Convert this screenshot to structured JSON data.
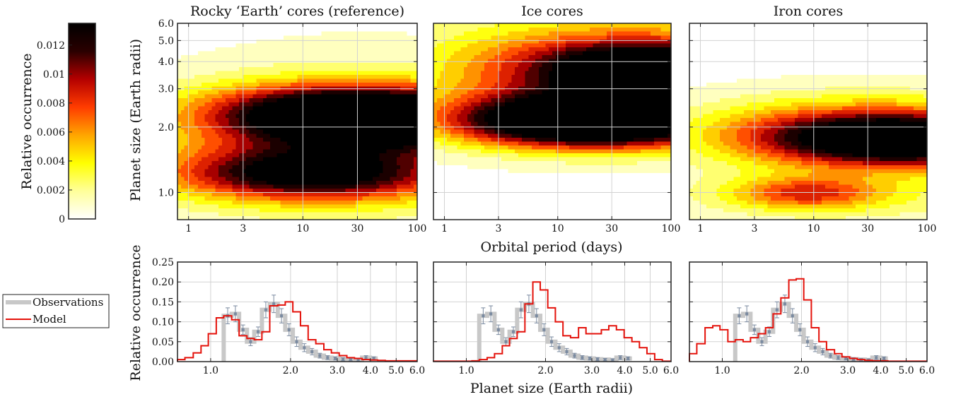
{
  "labels": {
    "xlabel_top": "Orbital period (days)",
    "ylabel_top": "Planet size (Earth radii)",
    "xlabel_bottom": "Planet size (Earth radii)",
    "ylabel_bottom": "Relative occurrence",
    "colorbar_label": "Relative occurrence"
  },
  "colorbar": {
    "ticks": [
      0,
      0.002,
      0.004,
      0.006,
      0.008,
      0.01,
      0.012
    ],
    "tick_labels": [
      "0",
      "0.002",
      "0.004",
      "0.006",
      "0.008",
      "0.01",
      "0.012"
    ],
    "range": [
      0,
      0.0135
    ],
    "colors": [
      "#ffffff",
      "#ffff9a",
      "#ffff00",
      "#ffa500",
      "#ff3c00",
      "#b40000",
      "#2a0000",
      "#000000"
    ]
  },
  "legend": {
    "entries": [
      {
        "label": "Observations",
        "color": "#c8c8c8"
      },
      {
        "label": "Model",
        "color": "#e4120b"
      }
    ]
  },
  "chart_data": [
    {
      "type": "heatmap",
      "title": "Rocky ‘Earth’ cores (reference)",
      "x_scale": "log",
      "y_scale": "log",
      "xlim": [
        0.8,
        100
      ],
      "ylim": [
        0.75,
        6.0
      ],
      "xticks": [
        1,
        3,
        10,
        30,
        100
      ],
      "xtick_labels": [
        "1",
        "3",
        "10",
        "30",
        "100"
      ],
      "yticks": [
        1.0,
        2.0,
        3.0,
        4.0,
        5.0,
        6.0
      ],
      "ytick_labels": [
        "1.0",
        "2.0",
        "3.0",
        "4.0",
        "5.0",
        "6.0"
      ],
      "grid": true,
      "blobs": [
        {
          "x": 10,
          "y": 1.25,
          "amplitude": 0.008,
          "sx": 0.75,
          "sy": 0.08
        },
        {
          "x": 20,
          "y": 1.15,
          "amplitude": 0.0035,
          "sx": 0.9,
          "sy": 0.08
        },
        {
          "x": 8,
          "y": 1.3,
          "amplitude": 0.003,
          "sx": 1.1,
          "sy": 0.13
        },
        {
          "x": 70,
          "y": 2.15,
          "amplitude": 0.013,
          "sx": 0.9,
          "sy": 0.09
        },
        {
          "x": 25,
          "y": 2.3,
          "amplitude": 0.006,
          "sx": 1.0,
          "sy": 0.11
        },
        {
          "x": 12,
          "y": 2.45,
          "amplitude": 0.004,
          "sx": 0.7,
          "sy": 0.08
        },
        {
          "x": 35,
          "y": 1.8,
          "amplitude": 0.0022,
          "sx": 1.3,
          "sy": 0.3
        }
      ]
    },
    {
      "type": "heatmap",
      "title": "Ice cores",
      "x_scale": "log",
      "y_scale": "log",
      "xlim": [
        0.8,
        100
      ],
      "ylim": [
        0.75,
        6.0
      ],
      "xticks": [
        1,
        3,
        10,
        30,
        100
      ],
      "xtick_labels": [
        "1",
        "3",
        "10",
        "30",
        "100"
      ],
      "yticks": [
        1.0,
        2.0,
        3.0,
        4.0,
        5.0,
        6.0
      ],
      "ytick_labels": [
        "1.0",
        "2.0",
        "3.0",
        "4.0",
        "5.0",
        "6.0"
      ],
      "grid": true,
      "blobs": [
        {
          "x": 14,
          "y": 2.15,
          "amplitude": 0.0135,
          "sx": 0.75,
          "sy": 0.08
        },
        {
          "x": 50,
          "y": 2.05,
          "amplitude": 0.007,
          "sx": 0.9,
          "sy": 0.08
        },
        {
          "x": 80,
          "y": 3.6,
          "amplitude": 0.0105,
          "sx": 0.6,
          "sy": 0.08
        },
        {
          "x": 35,
          "y": 3.9,
          "amplitude": 0.006,
          "sx": 0.9,
          "sy": 0.1
        },
        {
          "x": 30,
          "y": 4.6,
          "amplitude": 0.003,
          "sx": 1.3,
          "sy": 0.18
        },
        {
          "x": 30,
          "y": 3.0,
          "amplitude": 0.0025,
          "sx": 1.3,
          "sy": 0.2
        },
        {
          "x": 20,
          "y": 2.6,
          "amplitude": 0.0025,
          "sx": 1.1,
          "sy": 0.1
        }
      ]
    },
    {
      "type": "heatmap",
      "title": "Iron cores",
      "x_scale": "log",
      "y_scale": "log",
      "xlim": [
        0.8,
        100
      ],
      "ylim": [
        0.75,
        6.0
      ],
      "xticks": [
        1,
        3,
        10,
        30,
        100
      ],
      "xtick_labels": [
        "1",
        "3",
        "10",
        "30",
        "100"
      ],
      "yticks": [
        1.0,
        2.0,
        3.0,
        4.0,
        5.0,
        6.0
      ],
      "ytick_labels": [
        "1.0",
        "2.0",
        "3.0",
        "4.0",
        "5.0",
        "6.0"
      ],
      "grid": true,
      "blobs": [
        {
          "x": 75,
          "y": 1.72,
          "amplitude": 0.0125,
          "sx": 0.85,
          "sy": 0.08
        },
        {
          "x": 25,
          "y": 1.9,
          "amplitude": 0.006,
          "sx": 0.95,
          "sy": 0.09
        },
        {
          "x": 8.5,
          "y": 1.0,
          "amplitude": 0.006,
          "sx": 0.45,
          "sy": 0.05
        },
        {
          "x": 15,
          "y": 0.93,
          "amplitude": 0.0022,
          "sx": 1.0,
          "sy": 0.08
        },
        {
          "x": 30,
          "y": 1.45,
          "amplitude": 0.002,
          "sx": 1.2,
          "sy": 0.14
        },
        {
          "x": 30,
          "y": 2.4,
          "amplitude": 0.002,
          "sx": 1.1,
          "sy": 0.1
        }
      ]
    },
    {
      "type": "line",
      "x_scale": "log",
      "xlim": [
        0.75,
        6.0
      ],
      "ylim": [
        0,
        0.25
      ],
      "xticks": [
        1.0,
        2.0,
        3.0,
        4.0,
        5.0,
        6.0
      ],
      "xtick_labels": [
        "1.0",
        "2.0",
        "3.0",
        "4.0",
        "5.0",
        "6.0"
      ],
      "yticks": [
        0,
        0.05,
        0.1,
        0.15,
        0.2,
        0.25
      ],
      "ytick_labels": [
        "0.00",
        "0.05",
        "0.10",
        "0.15",
        "0.20",
        "0.25"
      ],
      "grid": true,
      "bin_edges": [
        0.75,
        0.8,
        0.86,
        0.92,
        0.98,
        1.05,
        1.12,
        1.2,
        1.28,
        1.37,
        1.46,
        1.56,
        1.67,
        1.79,
        1.91,
        2.04,
        2.18,
        2.33,
        2.49,
        2.67,
        2.85,
        3.05,
        3.26,
        3.48,
        3.72,
        3.98,
        4.26,
        4.55,
        4.86,
        5.2,
        5.56,
        6.0
      ],
      "series": [
        {
          "name": "Model",
          "style": "step",
          "color": "#e4120b",
          "values": [
            0.005,
            0.01,
            0.022,
            0.04,
            0.07,
            0.11,
            0.115,
            0.105,
            0.065,
            0.058,
            0.055,
            0.075,
            0.14,
            0.142,
            0.15,
            0.125,
            0.09,
            0.055,
            0.045,
            0.03,
            0.022,
            0.015,
            0.01,
            0.008,
            0.005,
            0.004,
            0.003,
            0.002,
            0.002,
            0.002,
            0.002
          ]
        },
        {
          "name": "Observations",
          "style": "step_thick",
          "color": "#c8c8c8",
          "start_bin": 6,
          "values": [
            0.115,
            0.12,
            0.08,
            0.05,
            0.075,
            0.13,
            0.145,
            0.115,
            0.08,
            0.05,
            0.035,
            0.025,
            0.015,
            0.01,
            0.008,
            0.006,
            0.005,
            0.004,
            0.01,
            0.008
          ],
          "err": [
            0.02,
            0.02,
            0.012,
            0.01,
            0.012,
            0.02,
            0.022,
            0.018,
            0.015,
            0.012,
            0.01,
            0.008,
            0.006,
            0.005,
            0.004,
            0.004,
            0.003,
            0.003,
            0.005,
            0.004
          ]
        }
      ]
    },
    {
      "type": "line",
      "x_scale": "log",
      "xlim": [
        0.75,
        6.0
      ],
      "ylim": [
        0,
        0.25
      ],
      "xticks": [
        1.0,
        2.0,
        3.0,
        4.0,
        5.0,
        6.0
      ],
      "xtick_labels": [
        "1.0",
        "2.0",
        "3.0",
        "4.0",
        "5.0",
        "6.0"
      ],
      "yticks": [
        0,
        0.05,
        0.1,
        0.15,
        0.2,
        0.25
      ],
      "grid": true,
      "bin_edges": [
        0.75,
        0.8,
        0.86,
        0.92,
        0.98,
        1.05,
        1.12,
        1.2,
        1.28,
        1.37,
        1.46,
        1.56,
        1.67,
        1.79,
        1.91,
        2.04,
        2.18,
        2.33,
        2.49,
        2.67,
        2.85,
        3.05,
        3.26,
        3.48,
        3.72,
        3.98,
        4.26,
        4.55,
        4.86,
        5.2,
        5.56,
        6.0
      ],
      "series": [
        {
          "name": "Model",
          "style": "step",
          "color": "#e4120b",
          "values": [
            0.001,
            0.001,
            0.001,
            0.001,
            0.001,
            0.002,
            0.005,
            0.01,
            0.02,
            0.04,
            0.058,
            0.075,
            0.145,
            0.2,
            0.18,
            0.135,
            0.1,
            0.065,
            0.06,
            0.085,
            0.07,
            0.07,
            0.08,
            0.09,
            0.08,
            0.06,
            0.05,
            0.035,
            0.02,
            0.005,
            0.001
          ]
        },
        {
          "name": "Observations",
          "style": "step_thick",
          "color": "#c8c8c8",
          "start_bin": 6,
          "values": [
            0.115,
            0.12,
            0.08,
            0.05,
            0.075,
            0.13,
            0.145,
            0.115,
            0.08,
            0.05,
            0.035,
            0.025,
            0.015,
            0.01,
            0.008,
            0.006,
            0.005,
            0.004,
            0.01,
            0.008
          ],
          "err": [
            0.02,
            0.02,
            0.012,
            0.01,
            0.012,
            0.02,
            0.022,
            0.018,
            0.015,
            0.012,
            0.01,
            0.008,
            0.006,
            0.005,
            0.004,
            0.004,
            0.003,
            0.003,
            0.005,
            0.004
          ]
        }
      ]
    },
    {
      "type": "line",
      "x_scale": "log",
      "xlim": [
        0.75,
        6.0
      ],
      "ylim": [
        0,
        0.25
      ],
      "xticks": [
        1.0,
        2.0,
        3.0,
        4.0,
        5.0,
        6.0
      ],
      "xtick_labels": [
        "1.0",
        "2.0",
        "3.0",
        "4.0",
        "5.0",
        "6.0"
      ],
      "yticks": [
        0,
        0.05,
        0.1,
        0.15,
        0.2,
        0.25
      ],
      "grid": true,
      "bin_edges": [
        0.75,
        0.8,
        0.86,
        0.92,
        0.98,
        1.05,
        1.12,
        1.2,
        1.28,
        1.37,
        1.46,
        1.56,
        1.67,
        1.79,
        1.91,
        2.04,
        2.18,
        2.33,
        2.49,
        2.67,
        2.85,
        3.05,
        3.26,
        3.48,
        3.72,
        3.98,
        4.26,
        4.55,
        4.86,
        5.2,
        5.56,
        6.0
      ],
      "series": [
        {
          "name": "Model",
          "style": "step",
          "color": "#e4120b",
          "values": [
            0.02,
            0.045,
            0.085,
            0.09,
            0.08,
            0.05,
            0.055,
            0.05,
            0.06,
            0.07,
            0.085,
            0.12,
            0.16,
            0.205,
            0.208,
            0.155,
            0.085,
            0.05,
            0.03,
            0.02,
            0.012,
            0.008,
            0.005,
            0.003,
            0.002,
            0.002,
            0.001,
            0.001,
            0.001,
            0.001,
            0.001
          ]
        },
        {
          "name": "Observations",
          "style": "step_thick",
          "color": "#c8c8c8",
          "start_bin": 6,
          "values": [
            0.115,
            0.12,
            0.08,
            0.05,
            0.075,
            0.13,
            0.145,
            0.115,
            0.08,
            0.05,
            0.035,
            0.025,
            0.015,
            0.01,
            0.008,
            0.006,
            0.005,
            0.004,
            0.01,
            0.008
          ],
          "err": [
            0.02,
            0.02,
            0.012,
            0.01,
            0.012,
            0.02,
            0.022,
            0.018,
            0.015,
            0.012,
            0.01,
            0.008,
            0.006,
            0.005,
            0.004,
            0.004,
            0.003,
            0.003,
            0.005,
            0.004
          ]
        }
      ]
    }
  ]
}
